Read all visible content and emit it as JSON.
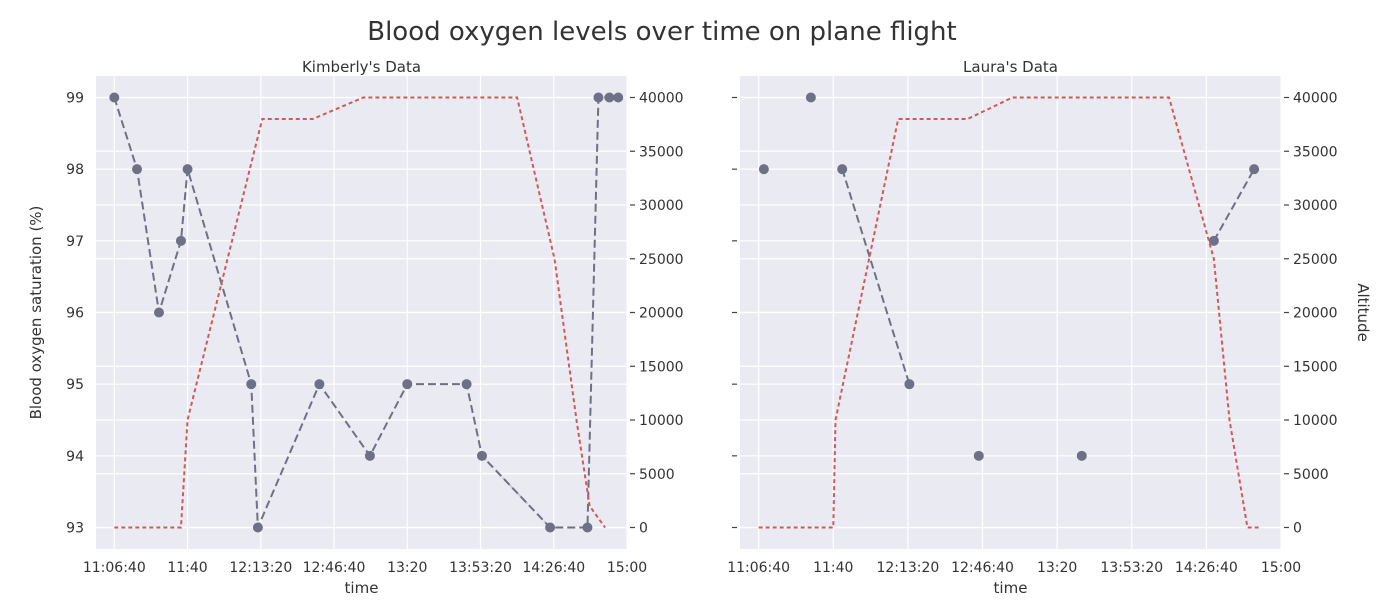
{
  "title": "Blood oxygen levels over time on plane flight",
  "colors": {
    "panel_bg": "#EAEAF2",
    "grid": "#FFFFFF",
    "spo2": "#6E7186",
    "altitude": "#D05A5A",
    "text": "#333333"
  },
  "chart_data": [
    {
      "type": "line",
      "title": "Kimberly's Data",
      "xlabel": "time",
      "ylabel_left": "Blood oxygen saturation (%)",
      "ylabel_right": "",
      "xlim": [
        "10:58:20",
        "15:00"
      ],
      "x_ticks": [
        "11:06:40",
        "11:40",
        "12:13:20",
        "12:46:40",
        "13:20",
        "13:53:20",
        "14:26:40",
        "15:00"
      ],
      "ylim_left": [
        92.7,
        99.3
      ],
      "y_ticks_left": [
        93,
        94,
        95,
        96,
        97,
        98,
        99
      ],
      "ylim_right": [
        -2000,
        42000
      ],
      "y_ticks_right": [
        0,
        5000,
        10000,
        15000,
        20000,
        25000,
        30000,
        35000,
        40000
      ],
      "grid": true,
      "series": [
        {
          "axis": "left",
          "style": "dashed-markers",
          "x": [
            "11:06:40",
            "11:17",
            "11:27",
            "11:37",
            "11:40",
            "12:09",
            "12:12",
            "12:40",
            "13:03",
            "13:20",
            "13:47",
            "13:54",
            "14:25",
            "14:42",
            "14:47",
            "14:52"
          ],
          "values": [
            99,
            98,
            96,
            97,
            98,
            95,
            93,
            95,
            94,
            95,
            95,
            94,
            93,
            93,
            99,
            99
          ],
          "connected": [
            true,
            true,
            true,
            true,
            true,
            true,
            true,
            true,
            true,
            true,
            true,
            true,
            false,
            true,
            true,
            true
          ],
          "extra_points": [
            {
              "x": "14:56",
              "value": 99
            }
          ]
        },
        {
          "axis": "right",
          "style": "dashed",
          "x": [
            "11:06:40",
            "11:37",
            "11:40",
            "12:14",
            "12:37",
            "13:00",
            "13:30",
            "14:10",
            "14:27",
            "14:37",
            "14:43",
            "14:50"
          ],
          "values": [
            0,
            0,
            10000,
            38000,
            38000,
            40000,
            40000,
            40000,
            25000,
            10000,
            2000,
            0
          ]
        }
      ]
    },
    {
      "type": "line",
      "title": "Laura's Data",
      "xlabel": "time",
      "ylabel_left": "",
      "ylabel_right": "Altitude",
      "xlim": [
        "10:58:20",
        "15:00"
      ],
      "x_ticks": [
        "11:06:40",
        "11:40",
        "12:13:20",
        "12:46:40",
        "13:20",
        "13:53:20",
        "14:26:40",
        "15:00"
      ],
      "ylim_left": [
        92.7,
        99.3
      ],
      "y_ticks_left": [
        93,
        94,
        95,
        96,
        97,
        98,
        99
      ],
      "y_ticklabels_left_visible": false,
      "ylim_right": [
        -2000,
        42000
      ],
      "y_ticks_right": [
        0,
        5000,
        10000,
        15000,
        20000,
        25000,
        30000,
        35000,
        40000
      ],
      "grid": true,
      "series": [
        {
          "axis": "left",
          "style": "dashed-markers",
          "segments": [
            {
              "x": [
                "11:09"
              ],
              "values": [
                98
              ]
            },
            {
              "x": [
                "11:30"
              ],
              "values": [
                99
              ]
            },
            {
              "x": [
                "11:44",
                "12:14"
              ],
              "values": [
                98,
                95
              ]
            },
            {
              "x": [
                "12:45"
              ],
              "values": [
                94
              ]
            },
            {
              "x": [
                "13:31"
              ],
              "values": [
                94
              ]
            },
            {
              "x": [
                "14:30",
                "14:48"
              ],
              "values": [
                97,
                98
              ]
            }
          ]
        },
        {
          "axis": "right",
          "style": "dashed",
          "x": [
            "11:06:40",
            "11:40",
            "11:41",
            "12:09",
            "12:40",
            "13:00",
            "13:30",
            "14:10",
            "14:30",
            "14:37",
            "14:45",
            "14:50"
          ],
          "values": [
            0,
            0,
            10000,
            38000,
            38000,
            40000,
            40000,
            40000,
            25000,
            10000,
            0,
            0
          ]
        }
      ]
    }
  ]
}
